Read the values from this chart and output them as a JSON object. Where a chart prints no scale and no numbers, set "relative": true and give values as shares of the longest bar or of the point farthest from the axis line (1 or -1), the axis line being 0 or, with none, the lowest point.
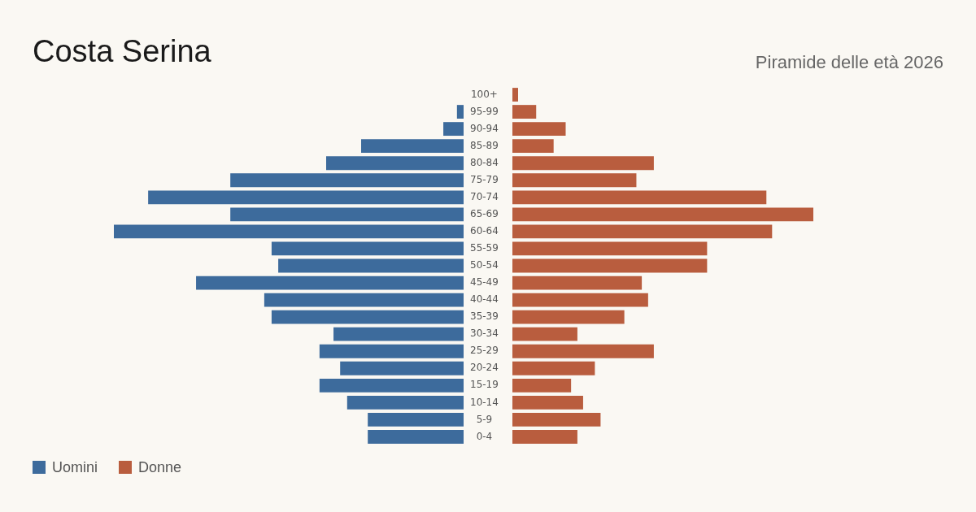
{
  "chart_data": [
    {
      "type": "bar",
      "title": "Costa Serina",
      "orientation": "horizontal",
      "relative": true,
      "legend": "bottom left",
      "grid": false,
      "tick_labels": "y",
      "categories": [
        "100+",
        "95-99",
        "90-94",
        "85-89",
        "80-84",
        "75-79",
        "70-74",
        "65-69",
        "60-64",
        "55-59",
        "50-54",
        "45-49",
        "40-44",
        "35-39",
        "30-34",
        "25-29",
        "20-24",
        "15-19",
        "10-14",
        "5-9",
        "0-4"
      ],
      "series": [
        {
          "name": "Uomini",
          "color": "#3d6b9c",
          "values": [
            0,
            -0.019,
            -0.058,
            -0.293,
            -0.393,
            -0.667,
            -0.902,
            -0.667,
            -1,
            -0.549,
            -0.53,
            -0.765,
            -0.57,
            -0.549,
            -0.372,
            -0.412,
            -0.353,
            -0.412,
            -0.333,
            -0.274,
            -0.274
          ]
        }
      ]
    },
    {
      "type": "bar",
      "subtitle": "Piramide delle età 2026",
      "orientation": "horizontal",
      "relative": true,
      "legend": "bottom left",
      "grid": false,
      "tick_labels": false,
      "categories": [
        null,
        null,
        null,
        null,
        null,
        null,
        null,
        null,
        null,
        null,
        null,
        null,
        null,
        null,
        null,
        null,
        null,
        null,
        null,
        null,
        null
      ],
      "series": [
        {
          "name": "Donne",
          "color": "#b95d3e",
          "values": [
            0.019,
            0.079,
            0.177,
            0.137,
            0.47,
            0.412,
            0.844,
            1,
            0.863,
            0.647,
            0.647,
            0.43,
            0.451,
            0.372,
            0.216,
            0.47,
            0.274,
            0.195,
            0.235,
            0.293,
            0.216
          ]
        }
      ]
    }
  ]
}
